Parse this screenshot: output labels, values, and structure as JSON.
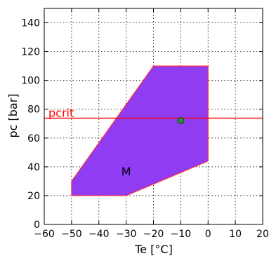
{
  "chart_data": {
    "type": "area",
    "title": "",
    "xlabel": "Te [°C]",
    "ylabel": "pc [bar]",
    "xlim": [
      -60,
      20
    ],
    "ylim": [
      0,
      150
    ],
    "xticks": [
      -60,
      -50,
      -40,
      -30,
      -20,
      -10,
      0,
      10,
      20
    ],
    "yticks": [
      0,
      20,
      40,
      60,
      80,
      100,
      120,
      140
    ],
    "xtick_labels": [
      "−60",
      "−50",
      "−40",
      "−30",
      "−20",
      "−10",
      "0",
      "10",
      "20"
    ],
    "ytick_labels": [
      "0",
      "20",
      "40",
      "60",
      "80",
      "100",
      "120",
      "140"
    ],
    "grid": true,
    "series": [
      {
        "name": "M",
        "kind": "polygon",
        "x": [
          -50,
          -50,
          -20,
          0,
          0,
          -30,
          -50
        ],
        "y": [
          20,
          30,
          110,
          110,
          44,
          20,
          20
        ],
        "fill_color": "#8f3cf2",
        "edge_color": "#ff3333"
      }
    ],
    "reference_lines": [
      {
        "orientation": "horizontal",
        "label": "pcrit",
        "y": 73.8,
        "color": "#ff0000"
      }
    ],
    "points": [
      {
        "x": -10,
        "y": 72,
        "color": "#2e8b3a"
      }
    ],
    "annotations": [
      {
        "text": "M",
        "x": -30,
        "y": 34
      }
    ]
  }
}
